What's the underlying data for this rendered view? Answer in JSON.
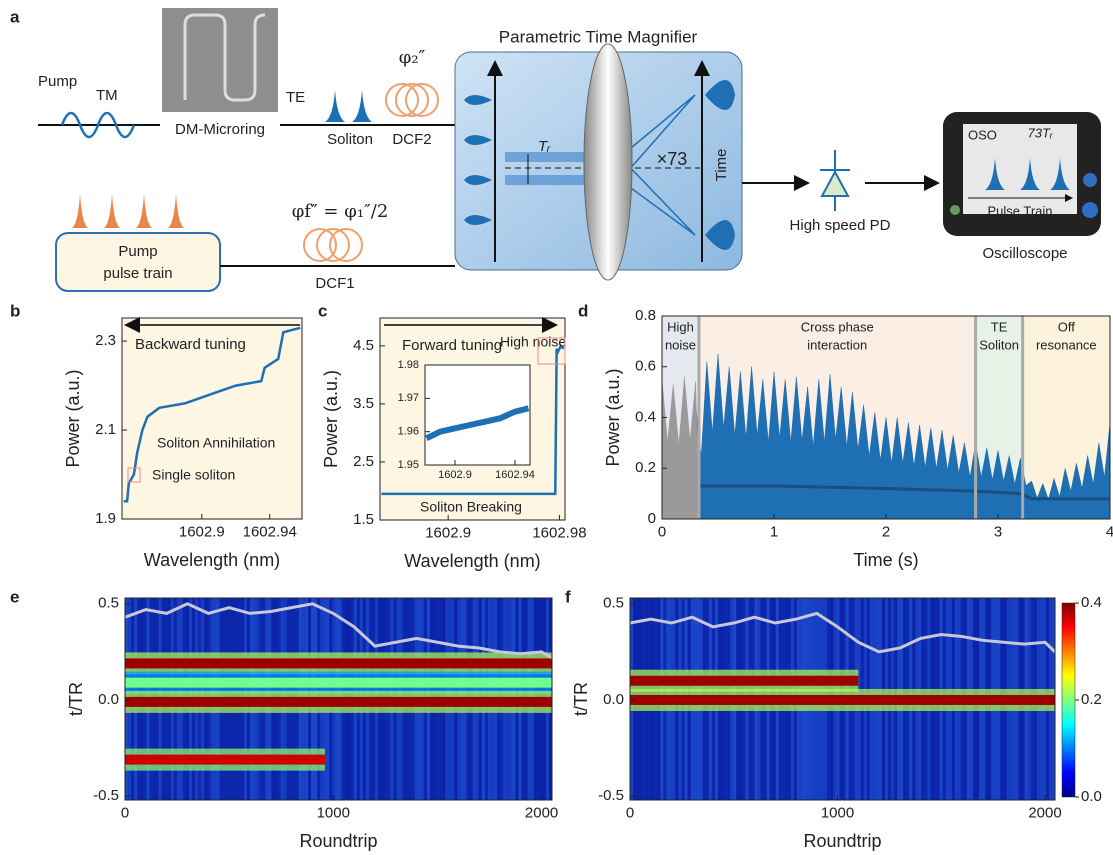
{
  "panel_labels": [
    "a",
    "b",
    "c",
    "d",
    "e",
    "f"
  ],
  "diagram": {
    "pump": "Pump",
    "tm": "TM",
    "microring": "DM-Microring",
    "te": "TE",
    "soliton": "Soliton",
    "phi2": "φ₂″",
    "dcf2": "DCF2",
    "magnifier": "Parametric Time Magnifier",
    "tr": "Tᵣ",
    "mag": "×73",
    "time": "Time",
    "pd": "High speed PD",
    "oso": "OSO",
    "tr73": "73Tᵣ",
    "pulse_train": "Pulse Train",
    "oscilloscope": "Oscilloscope",
    "pump_train": [
      "Pump",
      "pulse train"
    ],
    "phif": "φf″ = φ₁″/2",
    "dcf1": "DCF1"
  },
  "chart_data": [
    {
      "type": "line",
      "xlabel": "Wavelength (nm)",
      "ylabel": "Power (a.u.)",
      "xlim": [
        1602.853,
        1602.959
      ],
      "ylim": [
        1.9,
        2.352
      ],
      "xticks": [
        1602.9,
        1602.94
      ],
      "yticks": [
        1.9,
        2.1,
        2.3
      ],
      "background": "#fdf6e3",
      "annotations": [
        "Backward tuning",
        "Soliton Annihilation",
        "Single soliton"
      ],
      "x": [
        1602.854,
        1602.856,
        1602.857,
        1602.86,
        1602.862,
        1602.865,
        1602.868,
        1602.875,
        1602.89,
        1602.905,
        1602.92,
        1602.935,
        1602.937,
        1602.945,
        1602.948,
        1602.958
      ],
      "series": [
        {
          "color": "#1f6fb5",
          "values": [
            1.94,
            1.94,
            1.98,
            2.0,
            2.05,
            2.1,
            2.13,
            2.15,
            2.16,
            2.18,
            2.2,
            2.21,
            2.24,
            2.26,
            2.32,
            2.33
          ]
        }
      ]
    },
    {
      "type": "line",
      "xlabel": "Wavelength (nm)",
      "ylabel": "Power (a.u.)",
      "xlim": [
        1602.851,
        1602.984
      ],
      "ylim": [
        1.5,
        4.98
      ],
      "xticks": [
        1602.9,
        1602.98
      ],
      "yticks": [
        1.5,
        2.5,
        3.5,
        4.5
      ],
      "background": "#fdf6e3",
      "annotations": [
        "Forward tuning",
        "High noise",
        "Soliton Breaking"
      ],
      "x": [
        1602.852,
        1602.9,
        1602.95,
        1602.977,
        1602.978,
        1602.979,
        1602.981,
        1602.983
      ],
      "series": [
        {
          "color": "#1f6fb5",
          "values": [
            1.95,
            1.95,
            1.95,
            1.95,
            4.45,
            4.4,
            4.5,
            4.45
          ]
        }
      ],
      "inset": {
        "type": "line",
        "xlim": [
          1602.88,
          1602.95
        ],
        "ylim": [
          1.95,
          1.98
        ],
        "xticks": [
          1602.9,
          1602.94
        ],
        "yticks": [
          1.95,
          1.96,
          1.97,
          1.98
        ],
        "background": "#ffffff",
        "x": [
          1602.881,
          1602.89,
          1602.9,
          1602.91,
          1602.92,
          1602.93,
          1602.94,
          1602.949
        ],
        "series": [
          {
            "color": "#1f6fb5",
            "values": [
              1.958,
              1.96,
              1.961,
              1.962,
              1.963,
              1.964,
              1.966,
              1.967
            ]
          }
        ]
      }
    },
    {
      "type": "area",
      "xlabel": "Time (s)",
      "ylabel": "Power (a.u.)",
      "xlim": [
        0,
        4
      ],
      "ylim": [
        0,
        0.8
      ],
      "xticks": [
        0,
        1,
        2,
        3,
        4
      ],
      "yticks": [
        0,
        0.2,
        0.4,
        0.6,
        0.8
      ],
      "regions": [
        {
          "lines": [
            "High",
            "noise"
          ],
          "start": 0,
          "end": 0.33,
          "color": "#e6e8f0"
        },
        {
          "lines": [
            "Cross phase",
            "interaction"
          ],
          "start": 0.33,
          "end": 2.8,
          "color": "#fbeee4"
        },
        {
          "lines": [
            "TE",
            "Soliton"
          ],
          "start": 2.8,
          "end": 3.22,
          "color": "#e6f2e6"
        },
        {
          "lines": [
            "Off",
            "resonance"
          ],
          "start": 3.22,
          "end": 4,
          "color": "#fdf3dd"
        }
      ],
      "series": [
        {
          "color": "#1f6fb5",
          "x": [
            0,
            0.1,
            0.2,
            0.3,
            0.4,
            0.5,
            0.6,
            0.7,
            0.8,
            0.9,
            1,
            1.1,
            1.2,
            1.3,
            1.4,
            1.5,
            1.6,
            1.7,
            1.8,
            1.9,
            2,
            2.1,
            2.2,
            2.3,
            2.4,
            2.5,
            2.6,
            2.7,
            2.8,
            2.9,
            3,
            3.1,
            3.2,
            3.3,
            3.4,
            3.5,
            3.6,
            3.7,
            3.8,
            3.9,
            4
          ],
          "values": [
            0.45,
            0.46,
            0.44,
            0.45,
            0.62,
            0.65,
            0.6,
            0.58,
            0.6,
            0.55,
            0.58,
            0.55,
            0.56,
            0.52,
            0.55,
            0.57,
            0.52,
            0.5,
            0.45,
            0.42,
            0.4,
            0.4,
            0.38,
            0.37,
            0.36,
            0.35,
            0.33,
            0.3,
            0.3,
            0.28,
            0.27,
            0.25,
            0.24,
            0.15,
            0.14,
            0.16,
            0.2,
            0.22,
            0.25,
            0.3,
            0.38
          ]
        },
        {
          "color": "#9a9a9a",
          "x": [
            0,
            0.1,
            0.2,
            0.3,
            0.33
          ],
          "values": [
            0.55,
            0.53,
            0.56,
            0.54,
            0.55
          ]
        },
        {
          "color": "#1a4e80",
          "x": [
            0.34,
            1,
            2,
            2.8,
            3.2,
            3.3,
            4
          ],
          "values": [
            0.13,
            0.13,
            0.12,
            0.11,
            0.1,
            0.08,
            0.08
          ],
          "line": true
        }
      ]
    },
    {
      "type": "heatmap",
      "xlabel": "Roundtrip",
      "ylabel": "t/TR",
      "xlim": [
        0,
        2050
      ],
      "ylim": [
        -0.52,
        0.53
      ],
      "xticks": [
        0,
        1000,
        2000
      ],
      "yticks": [
        -0.5,
        {
          "value": 0,
          "label": "0.0"
        },
        0.5
      ],
      "tracks": [
        {
          "t": 0.19,
          "start": 0,
          "end": 2050,
          "intensity": 0.4
        },
        {
          "t": 0.09,
          "start": 0,
          "end": 2050,
          "intensity": 0.2
        },
        {
          "t": -0.01,
          "start": 0,
          "end": 2050,
          "intensity": 0.4
        },
        {
          "t": -0.31,
          "start": 0,
          "end": 960,
          "intensity": 0.38
        }
      ],
      "x": [
        0,
        100,
        200,
        300,
        400,
        500,
        600,
        700,
        800,
        900,
        1000,
        1100,
        1200,
        1300,
        1400,
        1500,
        1600,
        1700,
        1800,
        1900,
        2000,
        2050
      ],
      "series": [
        {
          "color": "#c8c8d8",
          "values": [
            0.43,
            0.47,
            0.45,
            0.5,
            0.45,
            0.48,
            0.45,
            0.46,
            0.48,
            0.5,
            0.45,
            0.38,
            0.28,
            0.3,
            0.32,
            0.3,
            0.28,
            0.27,
            0.25,
            0.24,
            0.25,
            0.22
          ]
        }
      ]
    },
    {
      "type": "heatmap",
      "xlabel": "Roundtrip",
      "ylabel": "t/TR",
      "xlim": [
        0,
        2048
      ],
      "ylim": [
        -0.52,
        0.53
      ],
      "xticks": [
        0,
        1000,
        2000
      ],
      "yticks": [
        -0.5,
        {
          "value": 0,
          "label": "0.0"
        },
        0.5
      ],
      "tracks": [
        {
          "t": 0.1,
          "start": 0,
          "end": 1100,
          "intensity": 0.4
        },
        {
          "t": 0.0,
          "start": 0,
          "end": 2048,
          "intensity": 0.4
        }
      ],
      "x": [
        0,
        100,
        200,
        300,
        400,
        500,
        600,
        700,
        800,
        900,
        1000,
        1100,
        1200,
        1300,
        1400,
        1500,
        1600,
        1700,
        1800,
        1900,
        2000,
        2048
      ],
      "series": [
        {
          "color": "#c8c8d8",
          "values": [
            0.4,
            0.42,
            0.4,
            0.43,
            0.38,
            0.4,
            0.43,
            0.4,
            0.42,
            0.45,
            0.38,
            0.3,
            0.25,
            0.27,
            0.32,
            0.34,
            0.33,
            0.31,
            0.3,
            0.29,
            0.3,
            0.25
          ]
        }
      ],
      "colorbar": {
        "clim": [
          0,
          0.4
        ],
        "ticks": [
          {
            "value": 0,
            "label": "0.0"
          },
          0.2,
          0.4
        ]
      }
    }
  ]
}
